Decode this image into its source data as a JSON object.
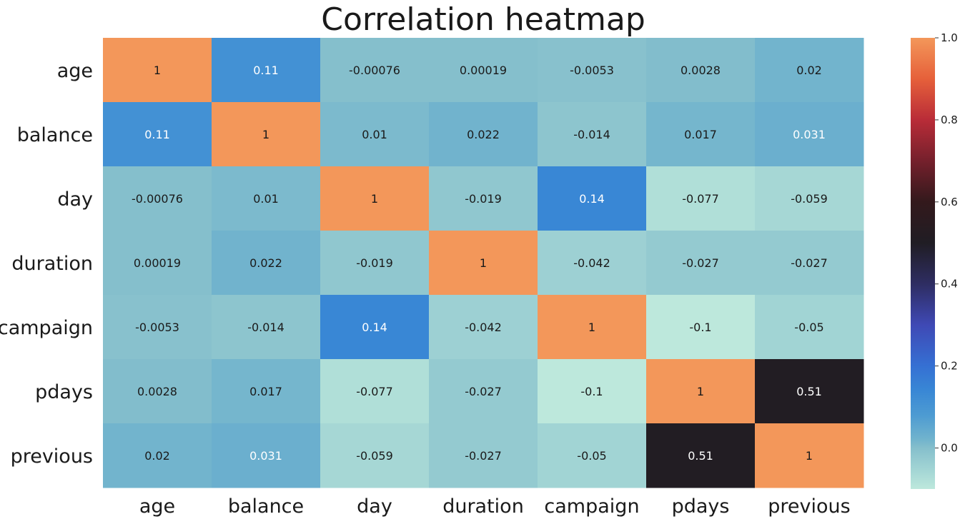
{
  "chart_data": {
    "type": "heatmap",
    "title": "Correlation heatmap",
    "rows": [
      "age",
      "balance",
      "day",
      "duration",
      "campaign",
      "pdays",
      "previous"
    ],
    "columns": [
      "age",
      "balance",
      "day",
      "duration",
      "campaign",
      "pdays",
      "previous"
    ],
    "values": [
      [
        1,
        0.11,
        -0.00076,
        0.00019,
        -0.0053,
        0.0028,
        0.02
      ],
      [
        0.11,
        1,
        0.01,
        0.022,
        -0.014,
        0.017,
        0.031
      ],
      [
        -0.00076,
        0.01,
        1,
        -0.019,
        0.14,
        -0.077,
        -0.059
      ],
      [
        0.00019,
        0.022,
        -0.019,
        1,
        -0.042,
        -0.027,
        -0.027
      ],
      [
        -0.0053,
        -0.014,
        0.14,
        -0.042,
        1,
        -0.1,
        -0.05
      ],
      [
        0.0028,
        0.017,
        -0.077,
        -0.027,
        -0.1,
        1,
        0.51
      ],
      [
        0.02,
        0.031,
        -0.059,
        -0.027,
        -0.05,
        0.51,
        1
      ]
    ],
    "labels": [
      [
        "1",
        "0.11",
        "-0.00076",
        "0.00019",
        "-0.0053",
        "0.0028",
        "0.02"
      ],
      [
        "0.11",
        "1",
        "0.01",
        "0.022",
        "-0.014",
        "0.017",
        "0.031"
      ],
      [
        "-0.00076",
        "0.01",
        "1",
        "-0.019",
        "0.14",
        "-0.077",
        "-0.059"
      ],
      [
        "0.00019",
        "0.022",
        "-0.019",
        "1",
        "-0.042",
        "-0.027",
        "-0.027"
      ],
      [
        "-0.0053",
        "-0.014",
        "0.14",
        "-0.042",
        "1",
        "-0.1",
        "-0.05"
      ],
      [
        "0.0028",
        "0.017",
        "-0.077",
        "-0.027",
        "-0.1",
        "1",
        "0.51"
      ],
      [
        "0.02",
        "0.031",
        "-0.059",
        "-0.027",
        "-0.05",
        "0.51",
        "1"
      ]
    ],
    "colorbar": {
      "range": [
        -0.1,
        1.0
      ],
      "ticks": [
        0.0,
        0.2,
        0.4,
        0.6,
        0.8,
        1.0
      ],
      "tick_labels": [
        "0.0",
        "0.2",
        "0.4",
        "0.6",
        "0.8",
        "1.0"
      ],
      "colormap": "icefire",
      "colors": [
        [
          -0.1,
          "#bde8dc"
        ],
        [
          0.0,
          "#85bfcc"
        ],
        [
          0.02,
          "#72b4cd"
        ],
        [
          0.08,
          "#4d9bd2"
        ],
        [
          0.14,
          "#3987d5"
        ],
        [
          0.2,
          "#3570d3"
        ],
        [
          0.3,
          "#3f49b5"
        ],
        [
          0.4,
          "#2e2d62"
        ],
        [
          0.5,
          "#201d24"
        ],
        [
          0.6,
          "#33191c"
        ],
        [
          0.7,
          "#75202c"
        ],
        [
          0.8,
          "#b92c38"
        ],
        [
          0.9,
          "#e6603a"
        ],
        [
          1.0,
          "#f3975a"
        ]
      ]
    }
  }
}
